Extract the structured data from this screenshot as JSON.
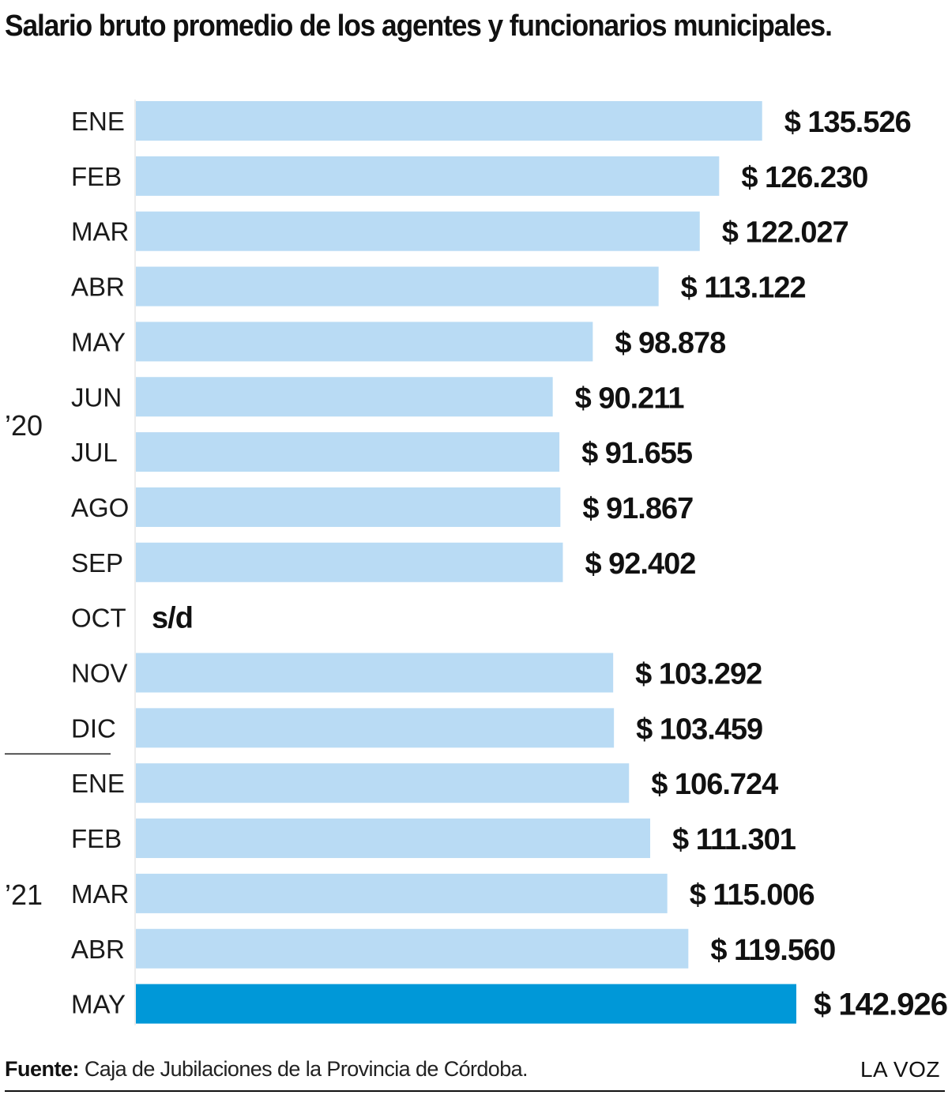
{
  "title": "Salario bruto promedio de los agentes y funcionarios municipales.",
  "chart_data": {
    "type": "bar",
    "orientation": "horizontal",
    "title": "Salario bruto promedio de los agentes y funcionarios municipales.",
    "categories": [
      "ENE",
      "FEB",
      "MAR",
      "ABR",
      "MAY",
      "JUN",
      "JUL",
      "AGO",
      "SEP",
      "OCT",
      "NOV",
      "DIC",
      "ENE",
      "FEB",
      "MAR",
      "ABR",
      "MAY"
    ],
    "groups": [
      {
        "label": "’20",
        "categories": [
          "ENE",
          "FEB",
          "MAR",
          "ABR",
          "MAY",
          "JUN",
          "JUL",
          "AGO",
          "SEP",
          "OCT",
          "NOV",
          "DIC"
        ]
      },
      {
        "label": "’21",
        "categories": [
          "ENE",
          "FEB",
          "MAR",
          "ABR",
          "MAY"
        ]
      }
    ],
    "values": [
      135526,
      126230,
      122027,
      113122,
      98878,
      90211,
      91655,
      91867,
      92402,
      null,
      103292,
      103459,
      106724,
      111301,
      115006,
      119560,
      142926
    ],
    "value_labels": [
      "$ 135.526",
      "$ 126.230",
      "$ 122.027",
      "$ 113.122",
      "$ 98.878",
      "$ 90.211",
      "$ 91.655",
      "$ 91.867",
      "$ 92.402",
      "s/d",
      "$ 103.292",
      "$ 103.459",
      "$ 106.724",
      "$ 111.301",
      "$ 115.006",
      "$ 119.560",
      "$ 142.926"
    ],
    "highlight_index": 16,
    "colors": {
      "bar": "#b9dbf4",
      "highlight": "#0098d8"
    },
    "xlim": [
      0,
      142926
    ],
    "grid": false,
    "legend": "none"
  },
  "footer": {
    "source_label": "Fuente:",
    "source_text": " Caja de Jubilaciones de la Provincia de Córdoba.",
    "brand": "LA VOZ"
  }
}
